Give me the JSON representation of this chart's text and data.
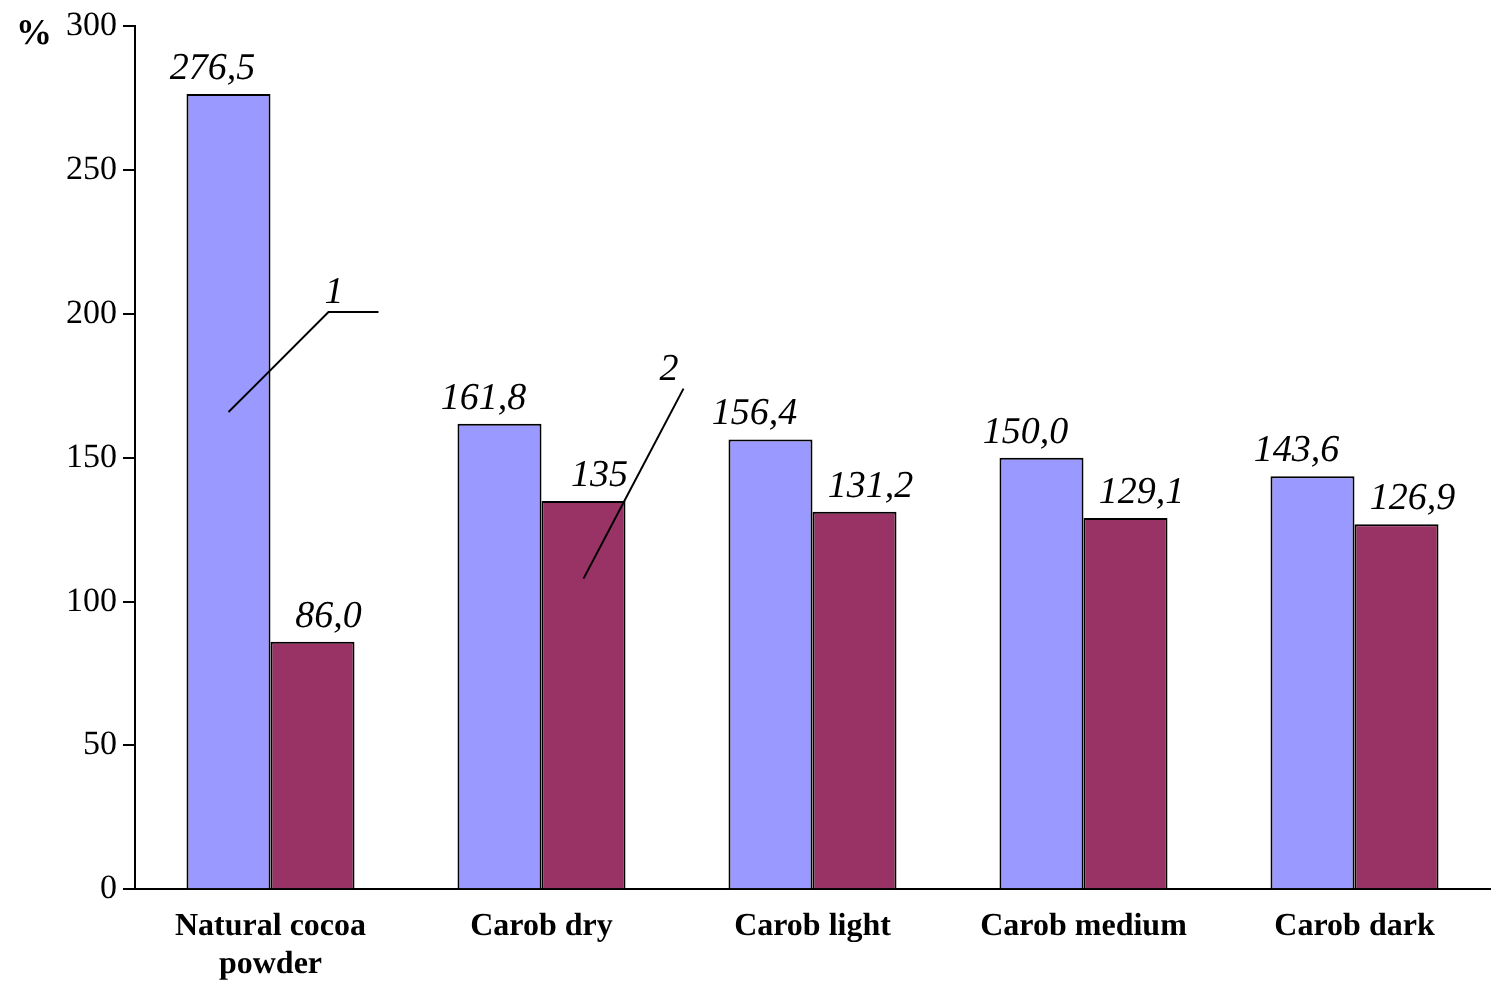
{
  "chart_data": {
    "type": "bar",
    "ylabel": "%",
    "categories": [
      "Natural cocoa powder",
      "Carob dry",
      "Carob light",
      "Carob medium",
      "Carob dark"
    ],
    "series": [
      {
        "name": "1",
        "color": "#9999ff",
        "values": [
          276.5,
          161.8,
          156.4,
          150.0,
          143.6
        ],
        "value_labels": [
          "276,5",
          "161,8",
          "156,4",
          "150,0",
          "143,6"
        ]
      },
      {
        "name": "2",
        "color": "#993366",
        "values": [
          86.0,
          135,
          131.2,
          129.1,
          126.9
        ],
        "value_labels": [
          "86,0",
          "135",
          "131,2",
          "129,1",
          "126,9"
        ]
      }
    ],
    "ylim": [
      0,
      300
    ],
    "yticks": [
      0,
      50,
      100,
      150,
      200,
      250,
      300
    ],
    "grid": false,
    "legend": false
  }
}
